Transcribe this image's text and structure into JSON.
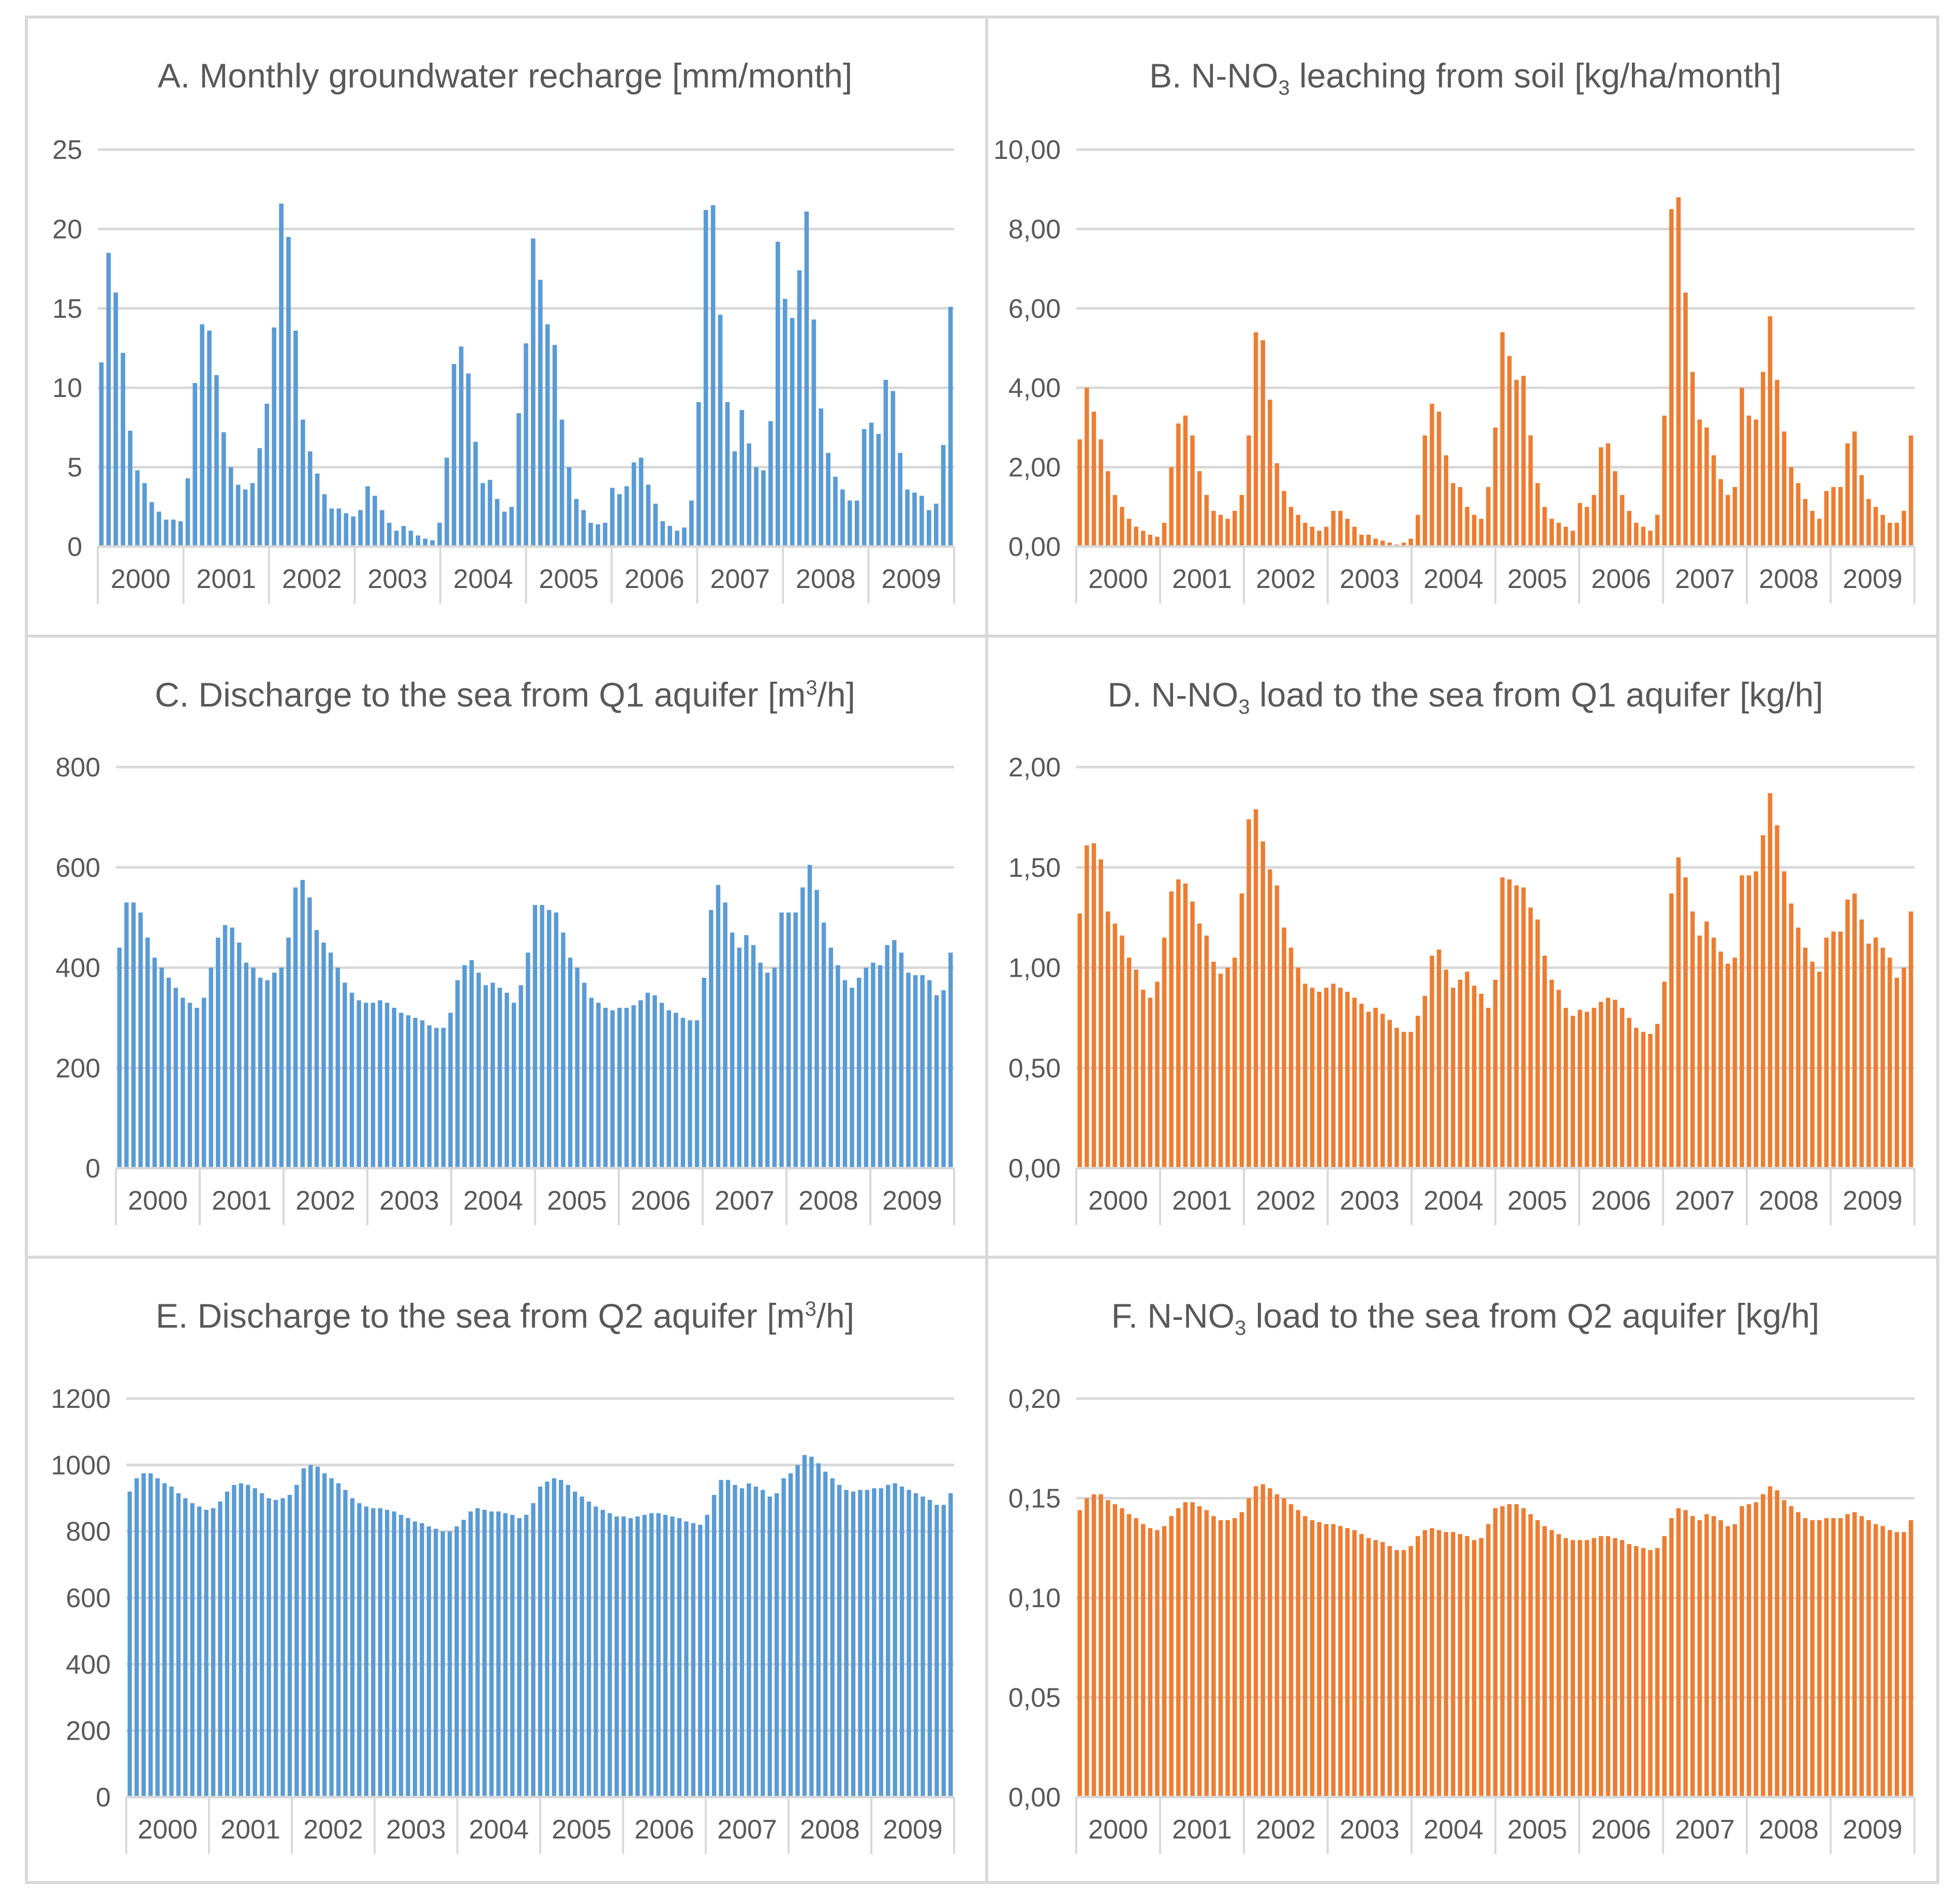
{
  "chart_data": [
    {
      "id": "A",
      "type": "bar",
      "color": "#5b9bd5",
      "title": {
        "main": "A. Monthly groundwater recharge [mm/month]"
      },
      "years": [
        "2000",
        "2001",
        "2002",
        "2003",
        "2004",
        "2005",
        "2006",
        "2007",
        "2008",
        "2009"
      ],
      "ylim": [
        0,
        25
      ],
      "yticks": [
        "0",
        "5",
        "10",
        "15",
        "20",
        "25"
      ],
      "values": [
        11.6,
        18.5,
        16.0,
        12.2,
        7.3,
        4.8,
        4.0,
        2.8,
        2.2,
        1.7,
        1.7,
        1.6,
        4.3,
        10.3,
        14.0,
        13.6,
        10.8,
        7.2,
        5.0,
        3.9,
        3.6,
        4.0,
        6.2,
        9.0,
        13.8,
        21.6,
        19.5,
        13.6,
        8.0,
        6.0,
        4.6,
        3.3,
        2.4,
        2.4,
        2.1,
        1.9,
        2.3,
        3.8,
        3.2,
        2.3,
        1.5,
        1.0,
        1.3,
        1.0,
        0.7,
        0.5,
        0.4,
        1.5,
        5.6,
        11.5,
        12.6,
        10.9,
        6.6,
        4.0,
        4.2,
        3.0,
        2.2,
        2.5,
        8.4,
        12.8,
        19.4,
        16.8,
        14.0,
        12.7,
        8.0,
        5.0,
        3.0,
        2.3,
        1.5,
        1.4,
        1.5,
        3.7,
        3.3,
        3.8,
        5.3,
        5.6,
        3.9,
        2.7,
        1.6,
        1.3,
        1.0,
        1.2,
        2.9,
        9.1,
        21.2,
        21.5,
        14.6,
        9.1,
        6.0,
        8.6,
        6.5,
        5.0,
        4.8,
        7.9,
        19.2,
        15.6,
        14.4,
        17.4,
        21.1,
        14.3,
        8.7,
        5.9,
        4.4,
        3.6,
        2.9,
        2.9,
        7.4,
        7.8,
        7.1,
        10.5,
        9.8,
        5.9,
        3.6,
        3.4,
        3.2,
        2.3,
        2.7,
        6.4,
        15.1
      ]
    },
    {
      "id": "B",
      "type": "bar",
      "color": "#ed7d31",
      "title": {
        "main": "B. N-NO",
        "sub": "3",
        "rest": " leaching from soil [kg/ha/month]"
      },
      "years": [
        "2000",
        "2001",
        "2002",
        "2003",
        "2004",
        "2005",
        "2006",
        "2007",
        "2008",
        "2009"
      ],
      "ylim": [
        0,
        10
      ],
      "yticks": [
        "0,00",
        "2,00",
        "4,00",
        "6,00",
        "8,00",
        "10,00"
      ],
      "values": [
        2.7,
        4.0,
        3.4,
        2.7,
        1.9,
        1.3,
        1.0,
        0.7,
        0.5,
        0.4,
        0.3,
        0.25,
        0.6,
        2.0,
        3.1,
        3.3,
        2.8,
        1.9,
        1.3,
        0.9,
        0.8,
        0.7,
        0.9,
        1.3,
        2.8,
        5.4,
        5.2,
        3.7,
        2.1,
        1.4,
        1.0,
        0.8,
        0.6,
        0.5,
        0.4,
        0.5,
        0.9,
        0.9,
        0.7,
        0.5,
        0.3,
        0.3,
        0.2,
        0.15,
        0.1,
        0.05,
        0.1,
        0.2,
        0.8,
        2.8,
        3.6,
        3.4,
        2.3,
        1.6,
        1.5,
        1.0,
        0.8,
        0.7,
        1.5,
        3.0,
        5.4,
        4.8,
        4.2,
        4.3,
        2.8,
        1.6,
        1.0,
        0.7,
        0.6,
        0.5,
        0.4,
        1.1,
        1.0,
        1.3,
        2.5,
        2.6,
        1.9,
        1.3,
        0.9,
        0.6,
        0.5,
        0.4,
        0.8,
        3.3,
        8.5,
        8.8,
        6.4,
        4.4,
        3.2,
        3.0,
        2.3,
        1.7,
        1.3,
        1.5,
        4.0,
        3.3,
        3.2,
        4.4,
        5.8,
        4.2,
        2.9,
        2.0,
        1.6,
        1.2,
        0.9,
        0.7,
        1.4,
        1.5,
        1.5,
        2.6,
        2.9,
        1.8,
        1.2,
        1.0,
        0.8,
        0.6,
        0.6,
        0.9,
        2.8
      ]
    },
    {
      "id": "C",
      "type": "bar",
      "color": "#5b9bd5",
      "title": {
        "main": "C. Discharge to the sea from Q1 aquifer [m",
        "sup": "3",
        "rest": "/h]"
      },
      "years": [
        "2000",
        "2001",
        "2002",
        "2003",
        "2004",
        "2005",
        "2006",
        "2007",
        "2008",
        "2009"
      ],
      "ylim": [
        0,
        800
      ],
      "yticks": [
        "0",
        "200",
        "400",
        "600",
        "800"
      ],
      "values": [
        440,
        530,
        530,
        510,
        460,
        420,
        400,
        380,
        360,
        340,
        330,
        320,
        340,
        400,
        460,
        485,
        480,
        450,
        410,
        400,
        380,
        375,
        390,
        400,
        460,
        560,
        575,
        540,
        475,
        450,
        430,
        400,
        370,
        350,
        335,
        330,
        330,
        335,
        330,
        320,
        310,
        305,
        300,
        295,
        285,
        280,
        280,
        310,
        375,
        405,
        415,
        390,
        365,
        370,
        360,
        350,
        330,
        365,
        430,
        525,
        525,
        515,
        510,
        470,
        420,
        400,
        370,
        340,
        330,
        320,
        315,
        320,
        320,
        325,
        335,
        350,
        345,
        330,
        315,
        310,
        300,
        295,
        295,
        380,
        515,
        565,
        530,
        470,
        440,
        465,
        445,
        410,
        390,
        400,
        510,
        510,
        510,
        560,
        605,
        555,
        490,
        440,
        405,
        375,
        360,
        380,
        400,
        410,
        405,
        445,
        455,
        430,
        390,
        385,
        385,
        375,
        345,
        355,
        430
      ]
    },
    {
      "id": "D",
      "type": "bar",
      "color": "#ed7d31",
      "title": {
        "main": "D. N-NO",
        "sub": "3",
        "rest": " load to the sea from Q1 aquifer [kg/h]"
      },
      "years": [
        "2000",
        "2001",
        "2002",
        "2003",
        "2004",
        "2005",
        "2006",
        "2007",
        "2008",
        "2009"
      ],
      "ylim": [
        0,
        2
      ],
      "yticks": [
        "0,00",
        "0,50",
        "1,00",
        "1,50",
        "2,00"
      ],
      "values": [
        1.27,
        1.61,
        1.62,
        1.54,
        1.28,
        1.22,
        1.16,
        1.05,
        0.99,
        0.89,
        0.85,
        0.93,
        1.15,
        1.38,
        1.44,
        1.42,
        1.33,
        1.22,
        1.16,
        1.03,
        0.97,
        1.0,
        1.05,
        1.37,
        1.74,
        1.79,
        1.63,
        1.49,
        1.41,
        1.2,
        1.1,
        1.0,
        0.92,
        0.9,
        0.88,
        0.9,
        0.92,
        0.9,
        0.88,
        0.85,
        0.82,
        0.78,
        0.8,
        0.77,
        0.74,
        0.7,
        0.68,
        0.68,
        0.76,
        0.86,
        1.06,
        1.09,
        0.99,
        0.9,
        0.94,
        0.98,
        0.91,
        0.87,
        0.8,
        0.94,
        1.45,
        1.44,
        1.41,
        1.4,
        1.3,
        1.24,
        1.06,
        0.94,
        0.89,
        0.8,
        0.76,
        0.79,
        0.78,
        0.8,
        0.83,
        0.85,
        0.84,
        0.8,
        0.75,
        0.7,
        0.68,
        0.67,
        0.72,
        0.93,
        1.37,
        1.55,
        1.45,
        1.28,
        1.16,
        1.23,
        1.15,
        1.08,
        1.02,
        1.05,
        1.46,
        1.46,
        1.48,
        1.66,
        1.87,
        1.71,
        1.48,
        1.32,
        1.2,
        1.1,
        1.03,
        0.98,
        1.15,
        1.18,
        1.18,
        1.34,
        1.37,
        1.24,
        1.12,
        1.15,
        1.1,
        1.05,
        0.95,
        1.0,
        1.28
      ]
    },
    {
      "id": "E",
      "type": "bar",
      "color": "#5b9bd5",
      "title": {
        "main": "E. Discharge to the sea from Q2 aquifer [m",
        "sup": "3",
        "rest": "/h]"
      },
      "years": [
        "2000",
        "2001",
        "2002",
        "2003",
        "2004",
        "2005",
        "2006",
        "2007",
        "2008",
        "2009"
      ],
      "ylim": [
        0,
        1200
      ],
      "yticks": [
        "0",
        "200",
        "400",
        "600",
        "800",
        "1000",
        "1200"
      ],
      "values": [
        920,
        960,
        975,
        975,
        960,
        945,
        935,
        915,
        900,
        885,
        875,
        865,
        870,
        890,
        920,
        940,
        945,
        940,
        930,
        915,
        900,
        895,
        900,
        910,
        940,
        990,
        1000,
        995,
        975,
        960,
        945,
        925,
        900,
        885,
        875,
        870,
        870,
        865,
        860,
        850,
        840,
        830,
        825,
        815,
        808,
        800,
        800,
        815,
        835,
        860,
        870,
        865,
        860,
        860,
        855,
        850,
        840,
        850,
        885,
        935,
        950,
        960,
        955,
        940,
        920,
        905,
        890,
        875,
        865,
        855,
        845,
        845,
        840,
        845,
        850,
        855,
        855,
        850,
        845,
        840,
        830,
        825,
        820,
        850,
        910,
        955,
        955,
        940,
        930,
        945,
        935,
        925,
        905,
        915,
        960,
        975,
        1000,
        1030,
        1025,
        1005,
        980,
        960,
        940,
        925,
        920,
        925,
        925,
        930,
        930,
        940,
        945,
        935,
        925,
        915,
        905,
        895,
        880,
        880,
        915
      ]
    },
    {
      "id": "F",
      "type": "bar",
      "color": "#ed7d31",
      "title": {
        "main": "F. N-NO",
        "sub": "3",
        "rest": " load to the sea from Q2 aquifer [kg/h]"
      },
      "years": [
        "2000",
        "2001",
        "2002",
        "2003",
        "2004",
        "2005",
        "2006",
        "2007",
        "2008",
        "2009"
      ],
      "ylim": [
        0,
        0.2
      ],
      "yticks": [
        "0,00",
        "0,05",
        "0,10",
        "0,15",
        "0,20"
      ],
      "values": [
        0.144,
        0.15,
        0.152,
        0.152,
        0.149,
        0.147,
        0.145,
        0.142,
        0.14,
        0.137,
        0.135,
        0.134,
        0.136,
        0.141,
        0.145,
        0.148,
        0.148,
        0.146,
        0.144,
        0.141,
        0.139,
        0.139,
        0.14,
        0.143,
        0.15,
        0.156,
        0.157,
        0.155,
        0.152,
        0.15,
        0.147,
        0.144,
        0.141,
        0.139,
        0.138,
        0.137,
        0.137,
        0.136,
        0.135,
        0.134,
        0.132,
        0.13,
        0.129,
        0.128,
        0.126,
        0.124,
        0.124,
        0.126,
        0.131,
        0.134,
        0.135,
        0.134,
        0.133,
        0.133,
        0.132,
        0.131,
        0.129,
        0.13,
        0.137,
        0.145,
        0.146,
        0.147,
        0.147,
        0.145,
        0.142,
        0.139,
        0.136,
        0.134,
        0.132,
        0.13,
        0.129,
        0.129,
        0.129,
        0.13,
        0.131,
        0.131,
        0.13,
        0.129,
        0.127,
        0.126,
        0.125,
        0.124,
        0.125,
        0.131,
        0.14,
        0.145,
        0.144,
        0.141,
        0.139,
        0.142,
        0.141,
        0.139,
        0.136,
        0.137,
        0.146,
        0.147,
        0.148,
        0.152,
        0.156,
        0.154,
        0.149,
        0.146,
        0.143,
        0.14,
        0.139,
        0.139,
        0.14,
        0.14,
        0.14,
        0.142,
        0.143,
        0.141,
        0.139,
        0.137,
        0.136,
        0.134,
        0.133,
        0.133,
        0.139
      ]
    }
  ]
}
